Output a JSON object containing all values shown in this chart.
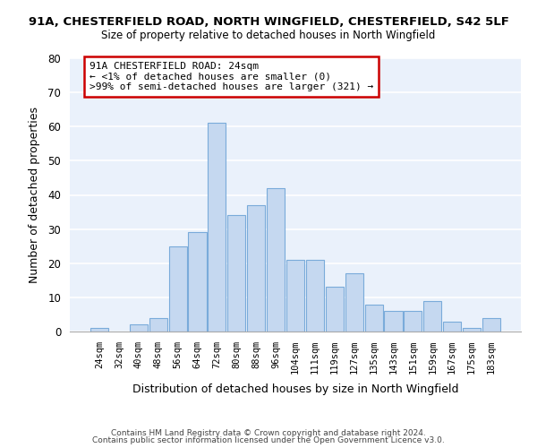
{
  "title1": "91A, CHESTERFIELD ROAD, NORTH WINGFIELD, CHESTERFIELD, S42 5LF",
  "title2": "Size of property relative to detached houses in North Wingfield",
  "xlabel": "Distribution of detached houses by size in North Wingfield",
  "ylabel": "Number of detached properties",
  "bin_labels": [
    "24sqm",
    "32sqm",
    "40sqm",
    "48sqm",
    "56sqm",
    "64sqm",
    "72sqm",
    "80sqm",
    "88sqm",
    "96sqm",
    "104sqm",
    "111sqm",
    "119sqm",
    "127sqm",
    "135sqm",
    "143sqm",
    "151sqm",
    "159sqm",
    "167sqm",
    "175sqm",
    "183sqm"
  ],
  "bin_values": [
    1,
    0,
    2,
    4,
    25,
    29,
    61,
    34,
    37,
    42,
    21,
    21,
    13,
    17,
    8,
    6,
    6,
    9,
    3,
    1,
    4
  ],
  "bar_color": "#c5d8f0",
  "bar_edge_color": "#7aabda",
  "bg_color": "#eaf1fb",
  "grid_color": "#d0daea",
  "annotation_text": "91A CHESTERFIELD ROAD: 24sqm\n← <1% of detached houses are smaller (0)\n>99% of semi-detached houses are larger (321) →",
  "annotation_box_edge": "#cc0000",
  "ylim": [
    0,
    80
  ],
  "yticks": [
    0,
    10,
    20,
    30,
    40,
    50,
    60,
    70,
    80
  ],
  "footer1": "Contains HM Land Registry data © Crown copyright and database right 2024.",
  "footer2": "Contains public sector information licensed under the Open Government Licence v3.0."
}
